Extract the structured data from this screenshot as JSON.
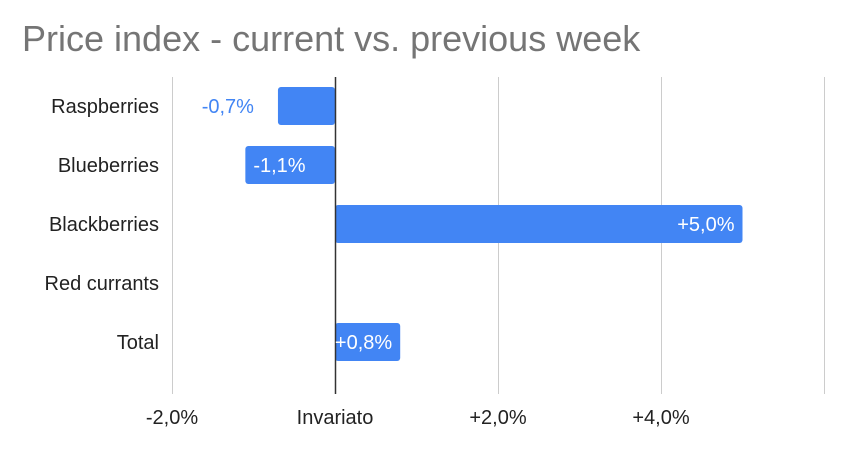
{
  "chart_data": {
    "type": "bar",
    "orientation": "horizontal",
    "title": "Price index - current vs. previous week",
    "categories": [
      "Raspberries",
      "Blueberries",
      "Blackberries",
      "Red currants",
      "Total"
    ],
    "values": [
      -0.7,
      -1.1,
      5.0,
      null,
      0.8
    ],
    "data_labels": [
      "-0,7%",
      "-1,1%",
      "+5,0%",
      "",
      "+0,8%"
    ],
    "x_ticks": [
      {
        "value": -2,
        "label": "-2,0%"
      },
      {
        "value": 0,
        "label": "Invariato"
      },
      {
        "value": 2,
        "label": "+2,0%"
      },
      {
        "value": 4,
        "label": "+4,0%"
      },
      {
        "value": 6,
        "label": ""
      }
    ],
    "xlim": [
      -2,
      6
    ],
    "xlabel": "",
    "ylabel": "",
    "grid": true,
    "legend": "none",
    "bar_color": "#4285f4",
    "inside_label_color": "#ffffff",
    "outside_label_color": "#4285f4"
  }
}
